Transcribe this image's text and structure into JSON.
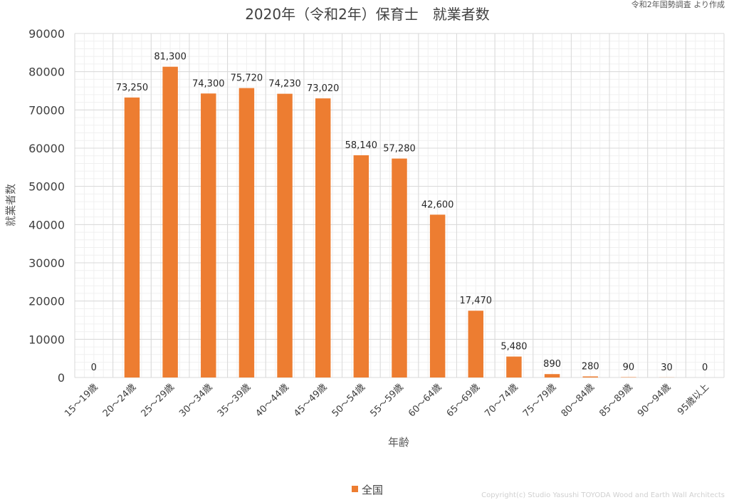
{
  "source_note": "令和2年国勢調査 より作成",
  "copyright": "Copyright(c)   Studio Yasushi TOYODA  Wood and Earth Wall Architects",
  "colors": {
    "bar": "#ED7D31",
    "grid_major": "#d9d9d9",
    "grid_minor": "#f0f0f0"
  },
  "chart_data": {
    "type": "bar",
    "title": "2020年（令和2年）保育士　就業者数",
    "xlabel": "年齢",
    "ylabel": "就業者数",
    "ylim": [
      0,
      90000
    ],
    "yticks": [
      "0",
      "10000",
      "20000",
      "30000",
      "40000",
      "50000",
      "60000",
      "70000",
      "80000",
      "90000"
    ],
    "grid": true,
    "legend_position": "bottom",
    "categories": [
      "15～19歳",
      "20～24歳",
      "25～29歳",
      "30～34歳",
      "35～39歳",
      "40～44歳",
      "45～49歳",
      "50～54歳",
      "55～59歳",
      "60～64歳",
      "65～69歳",
      "70～74歳",
      "75～79歳",
      "80～84歳",
      "85～89歳",
      "90～94歳",
      "95歳以上"
    ],
    "series": [
      {
        "name": "全国",
        "values": [
          0,
          73250,
          81300,
          74300,
          75720,
          74230,
          73020,
          58140,
          57280,
          42600,
          17470,
          5480,
          890,
          280,
          90,
          30,
          0
        ],
        "labels": [
          "0",
          "73,250",
          "81,300",
          "74,300",
          "75,720",
          "74,230",
          "73,020",
          "58,140",
          "57,280",
          "42,600",
          "17,470",
          "5,480",
          "890",
          "280",
          "90",
          "30",
          "0"
        ]
      }
    ]
  }
}
